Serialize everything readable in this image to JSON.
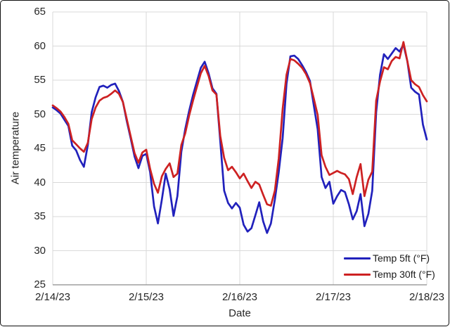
{
  "chart_data": {
    "type": "line",
    "title": "",
    "xlabel": "Date",
    "ylabel": "Air temperature",
    "ylim": [
      25,
      65
    ],
    "y_ticks": [
      25,
      30,
      35,
      40,
      45,
      50,
      55,
      60,
      65
    ],
    "x_tick_labels": [
      "2/14/23",
      "2/15/23",
      "2/16/23",
      "2/17/23",
      "2/18/23"
    ],
    "x_tick_hours": [
      0,
      24,
      48,
      72,
      96
    ],
    "x_unit": "one point per hour starting 2/14/23 00:00",
    "grid": true,
    "gridline_color": "#d9d9d9",
    "axis_line_color": "#8c8c8c",
    "legend_position": "bottom-right-inside",
    "series": [
      {
        "name": "Temp 5ft (°F)",
        "color": "#2121bc",
        "values": [
          51.0,
          50.6,
          50.1,
          49.2,
          48.3,
          45.4,
          44.7,
          43.3,
          42.3,
          45.5,
          50.3,
          52.5,
          54.0,
          54.2,
          53.9,
          54.3,
          54.5,
          53.4,
          51.8,
          49.0,
          46.5,
          43.8,
          42.1,
          43.9,
          44.2,
          41.5,
          36.5,
          34.0,
          37.5,
          41.3,
          39.0,
          35.1,
          38.0,
          44.5,
          47.8,
          50.5,
          52.8,
          54.8,
          56.8,
          57.7,
          56.0,
          53.8,
          53.0,
          46.0,
          38.8,
          37.0,
          36.2,
          37.0,
          36.3,
          33.8,
          32.8,
          33.3,
          35.2,
          37.1,
          34.3,
          32.6,
          34.0,
          37.5,
          41.5,
          46.5,
          54.5,
          58.5,
          58.6,
          58.1,
          57.2,
          56.2,
          54.9,
          51.3,
          47.8,
          40.8,
          39.2,
          40.1,
          36.9,
          38.0,
          38.9,
          38.6,
          36.8,
          34.6,
          35.8,
          38.3,
          33.6,
          35.4,
          38.8,
          50.3,
          55.8,
          58.8,
          58.1,
          58.9,
          59.7,
          59.2,
          60.2,
          57.8,
          53.9,
          53.3,
          52.9,
          48.5,
          46.3
        ]
      },
      {
        "name": "Temp 30ft (°F)",
        "color": "#cd2122",
        "values": [
          51.3,
          50.9,
          50.4,
          49.6,
          48.6,
          46.2,
          45.6,
          45.0,
          44.5,
          45.8,
          49.3,
          51.0,
          52.0,
          52.4,
          52.6,
          53.0,
          53.5,
          53.0,
          51.8,
          49.3,
          46.8,
          44.3,
          42.9,
          44.4,
          44.8,
          42.0,
          39.8,
          38.5,
          40.9,
          42.0,
          42.8,
          40.8,
          41.3,
          45.5,
          47.2,
          49.8,
          52.0,
          54.0,
          56.0,
          57.1,
          55.6,
          53.5,
          52.9,
          46.8,
          43.6,
          41.8,
          42.3,
          41.5,
          40.6,
          41.3,
          40.2,
          39.2,
          40.1,
          39.7,
          38.2,
          36.8,
          36.6,
          38.8,
          43.5,
          50.8,
          55.8,
          58.1,
          57.9,
          57.4,
          56.8,
          55.9,
          54.6,
          52.3,
          49.9,
          44.0,
          42.3,
          41.1,
          41.4,
          41.7,
          41.4,
          41.2,
          40.5,
          38.3,
          40.8,
          42.7,
          38.0,
          40.4,
          41.6,
          52.0,
          54.8,
          56.9,
          56.6,
          57.8,
          58.4,
          58.2,
          60.6,
          57.8,
          55.0,
          54.4,
          54.0,
          52.8,
          51.9
        ]
      }
    ]
  },
  "legend": {
    "items": [
      {
        "label": "Temp 5ft (°F)"
      },
      {
        "label": "Temp 30ft (°F)"
      }
    ]
  }
}
